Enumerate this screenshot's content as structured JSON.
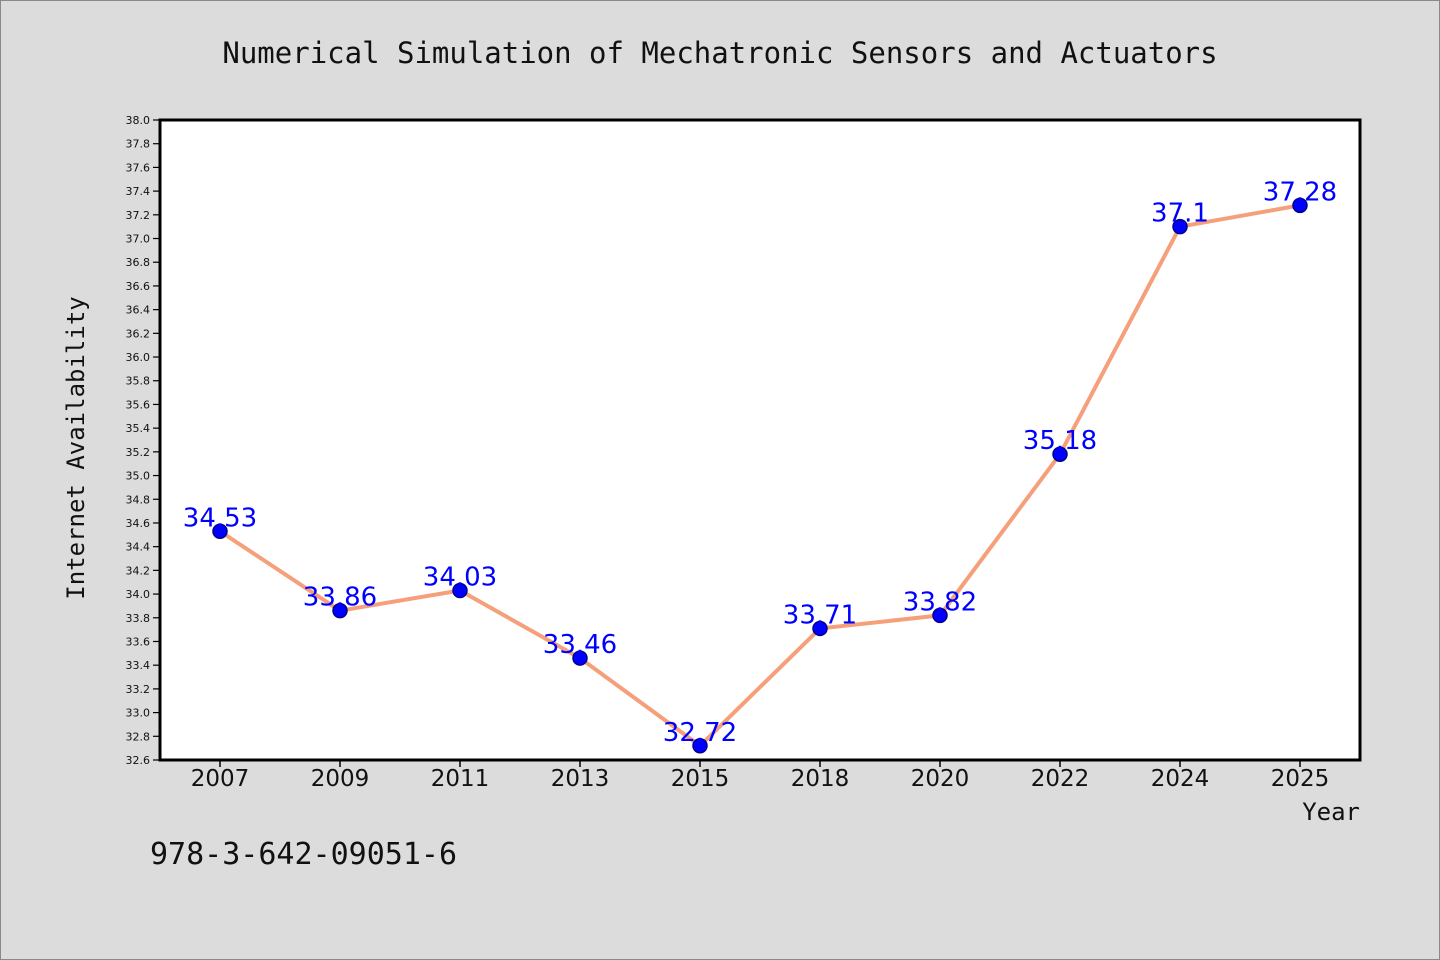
{
  "chart_data": {
    "type": "line",
    "title": "Numerical Simulation of Mechatronic Sensors and Actuators",
    "xlabel": "Year",
    "ylabel": "Internet Availability",
    "categories": [
      "2007",
      "2009",
      "2011",
      "2013",
      "2015",
      "2018",
      "2020",
      "2022",
      "2024",
      "2025"
    ],
    "values": [
      34.53,
      33.86,
      34.03,
      33.46,
      32.72,
      33.71,
      33.82,
      35.18,
      37.1,
      37.28
    ],
    "ylim": [
      32.6,
      38.0
    ],
    "yticks": [
      "32.6",
      "32.8",
      "33.0",
      "33.2",
      "33.4",
      "33.6",
      "33.8",
      "34.0",
      "34.2",
      "34.4",
      "34.6",
      "34.8",
      "35.0",
      "35.2",
      "35.4",
      "35.6",
      "35.8",
      "36.0",
      "36.2",
      "36.4",
      "36.6",
      "36.8",
      "37.0",
      "37.2",
      "37.4",
      "37.6",
      "37.8",
      "38.0"
    ],
    "grid": false,
    "colors": {
      "background": "#dcdcdc",
      "plot_background": "#ffffff",
      "line": "#f5a07a",
      "marker": "#0000ff",
      "marker_edge": "#00008b",
      "data_label": "#0000ff"
    }
  },
  "footer": {
    "isbn": "978-3-642-09051-6"
  }
}
